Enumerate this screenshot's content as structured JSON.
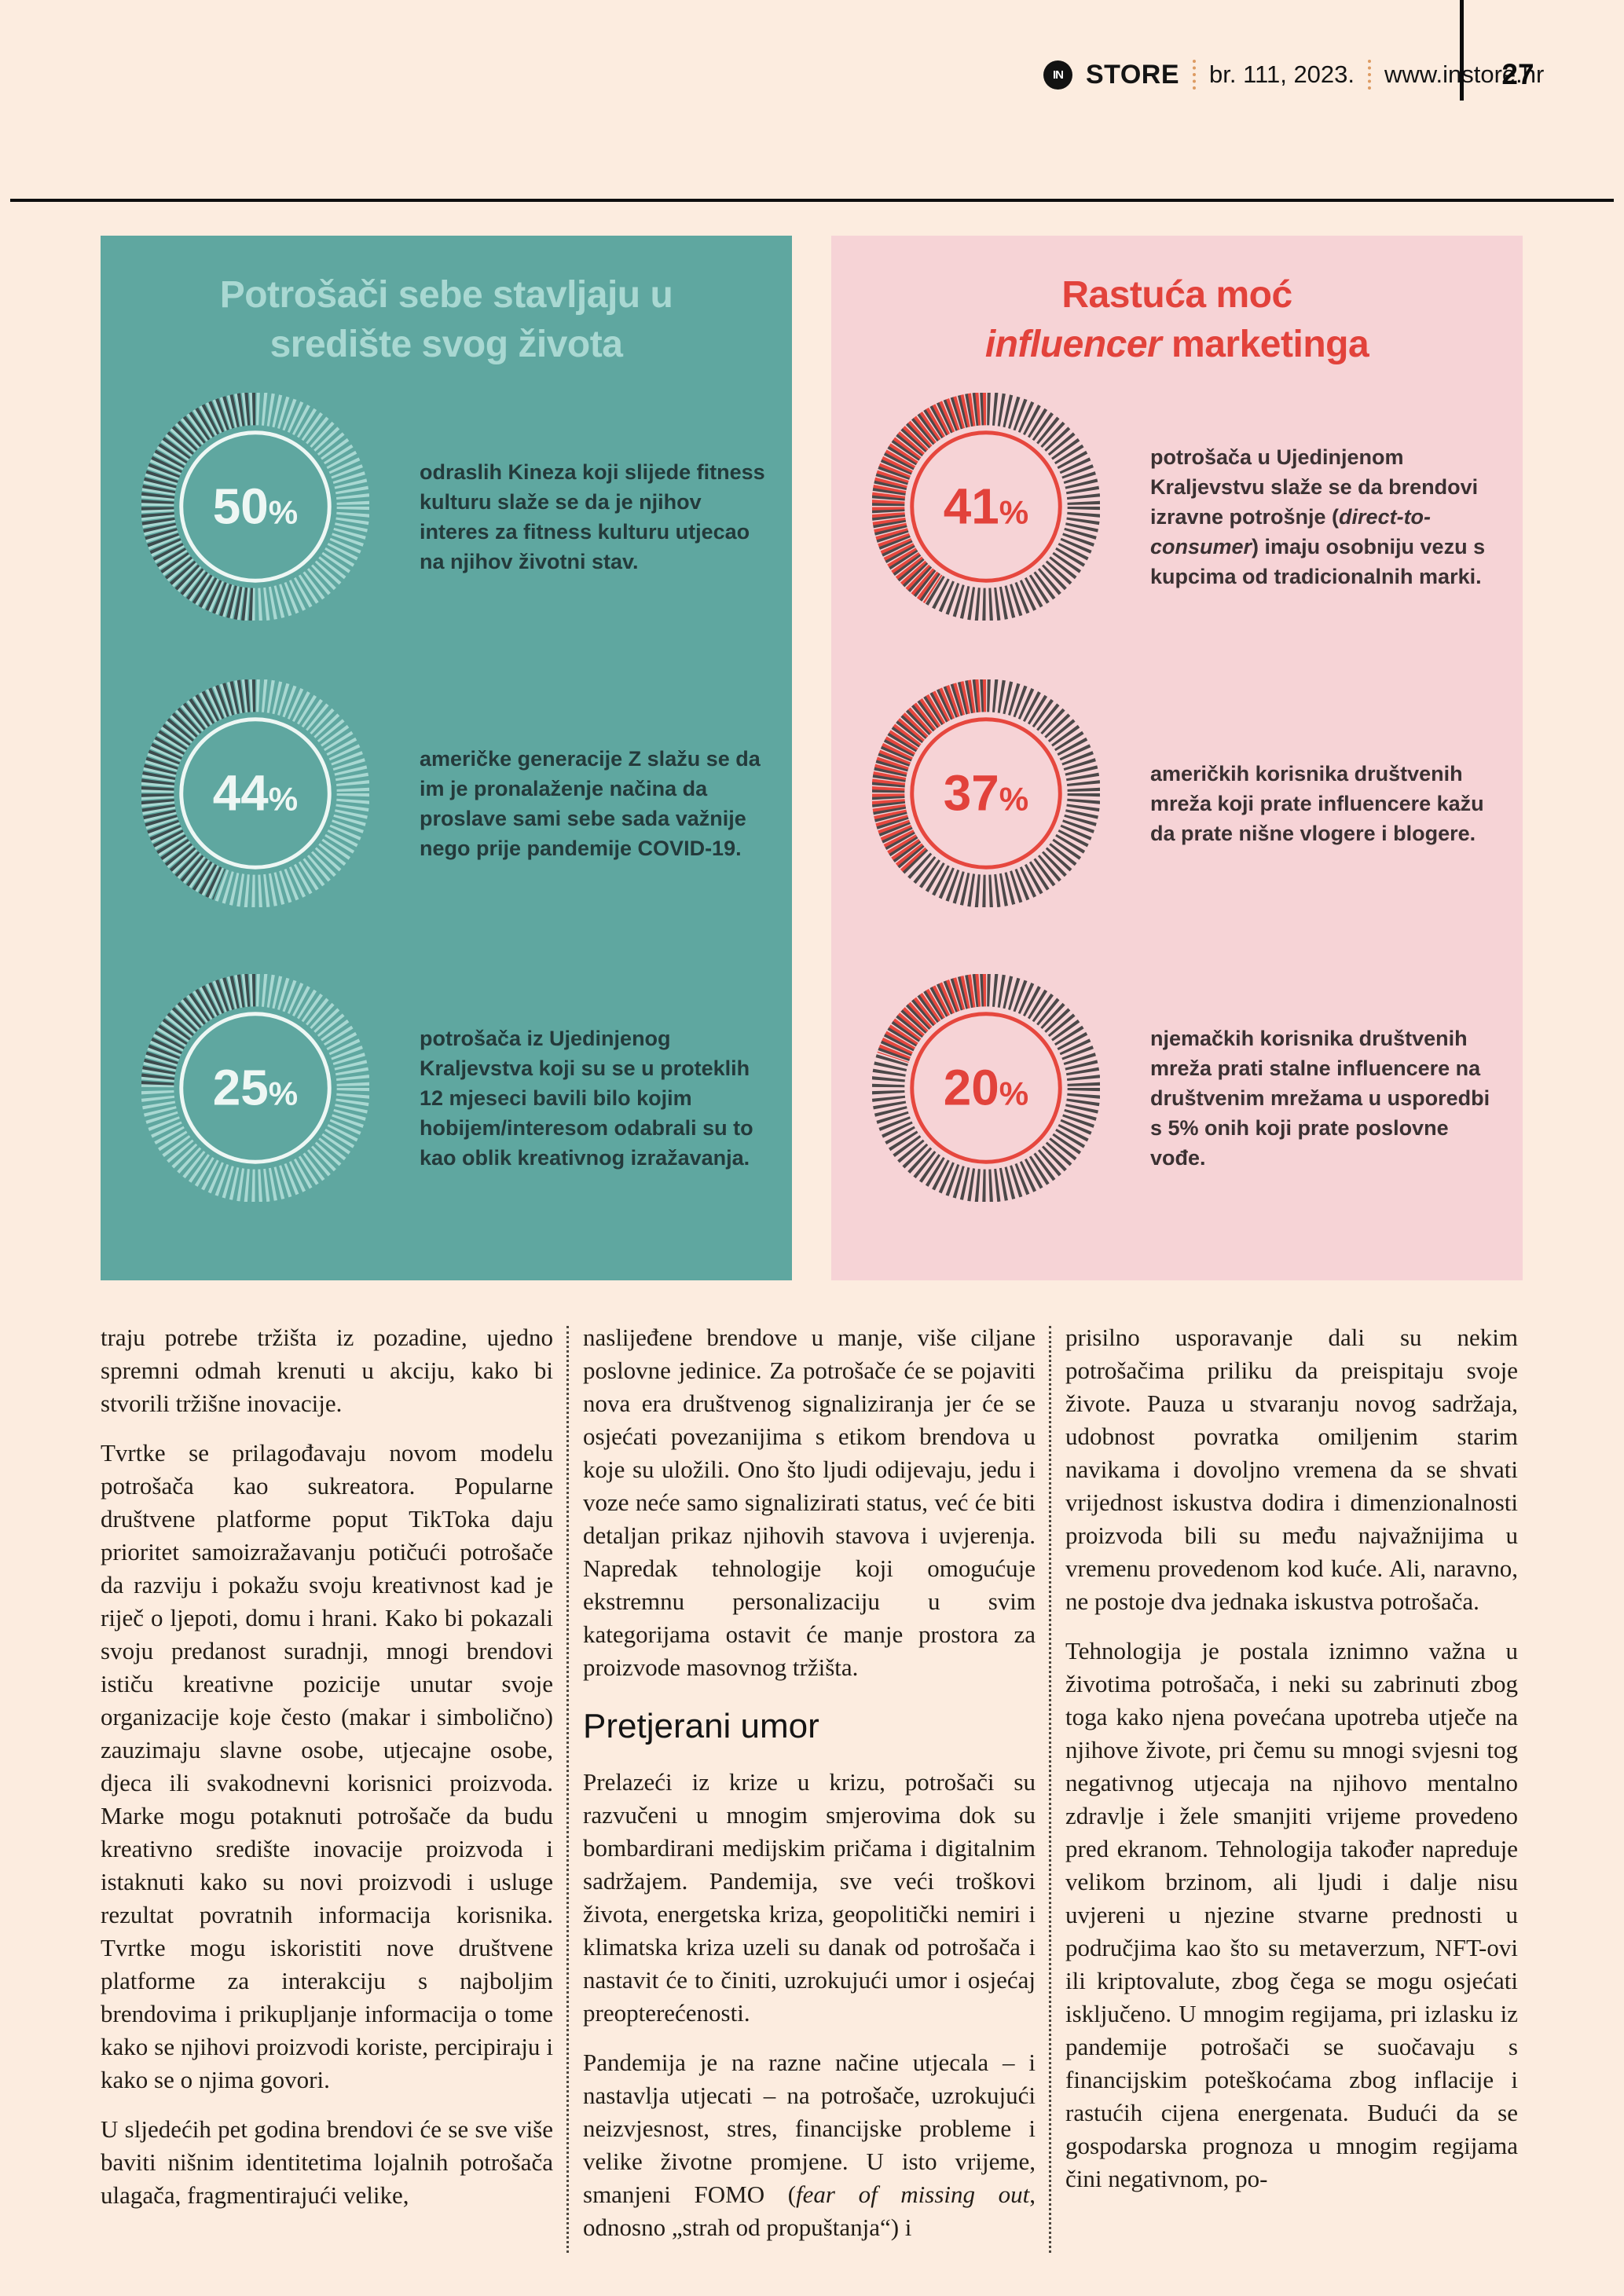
{
  "header": {
    "logo_in": "IN",
    "logo_store": "STORE",
    "issue": "br. 111, 2023.",
    "website": "www.instore.hr",
    "page_number": "27"
  },
  "infographic": {
    "left_panel": {
      "title_line1": "Potrošači sebe stavljaju u",
      "title_line2": "središte svog života",
      "bg_color": "#5fa7a0",
      "title_color": "#a9d8d2",
      "value_color": "#3c4b4d",
      "track_color": "#a9d8d2",
      "ring_color": "#eef7f4",
      "label_color": "#eef7f4",
      "stats": [
        {
          "value": 50,
          "label": "50%",
          "text_segments": [
            {
              "t": "odraslih Kineza koji slijede fitness kulturu slaže se da je njihov interes za fitness kulturu utjecao na njihov životni stav.",
              "i": false
            }
          ]
        },
        {
          "value": 44,
          "label": "44%",
          "text_segments": [
            {
              "t": "američke generacije Z slažu se da im je pronalaženje načina da proslave sami sebe sada važnije nego prije pandemije COVID-19.",
              "i": false
            }
          ]
        },
        {
          "value": 25,
          "label": "25%",
          "text_segments": [
            {
              "t": "potrošača iz Ujedinjenog Kraljevstva koji su se u proteklih 12 mjeseci bavili bilo kojim hobijem/interesom odabrali su to kao oblik kreativnog izražavanja.",
              "i": false
            }
          ]
        }
      ]
    },
    "right_panel": {
      "title_line1": "Rastuća moć",
      "title_line2_italic": "influencer",
      "title_line2_rest": " marketinga",
      "bg_color": "#f6d3d6",
      "title_color": "#e2423b",
      "value_color": "#e6473e",
      "track_color": "#4c4849",
      "ring_color": "#e6473e",
      "label_color": "#e2423b",
      "stats": [
        {
          "value": 41,
          "label": "41%",
          "text_segments": [
            {
              "t": "potrošača u Ujedinjenom Kraljevstvu slaže se da brendovi izravne potrošnje (",
              "i": false
            },
            {
              "t": "direct-to-consumer",
              "i": true
            },
            {
              "t": ") imaju osobniju vezu s kupcima od tradicionalnih marki.",
              "i": false
            }
          ]
        },
        {
          "value": 37,
          "label": "37%",
          "text_segments": [
            {
              "t": "američkih korisnika društvenih mreža koji prate influencere kažu da prate nišne vlogere i blogere.",
              "i": false
            }
          ]
        },
        {
          "value": 20,
          "label": "20%",
          "text_segments": [
            {
              "t": "njemačkih korisnika društvenih mreža prati stalne influencere na društvenim mrežama u usporedbi s 5% onih koji prate poslovne vođe.",
              "i": false
            }
          ]
        }
      ]
    }
  },
  "article": {
    "heading": "Pretjerani umor",
    "columns": [
      {
        "blocks": [
          {
            "type": "p",
            "segments": [
              {
                "t": "traju potrebe tržišta iz pozadine, ujedno spremni odmah krenuti u akciju, kako bi stvorili tržišne inovacije.",
                "i": false
              }
            ]
          },
          {
            "type": "p",
            "segments": [
              {
                "t": "Tvrtke se prilagođavaju novom modelu potrošača kao sukreatora. Popularne društvene platforme poput TikToka daju prioritet samoizražavanju potičući potrošače da razviju i pokažu svoju kreativnost kad je riječ o ljepoti, domu i hrani. Kako bi pokazali svoju predanost suradnji, mnogi brendovi ističu kreativne pozicije unutar svoje organizacije koje često (makar i simbolično) zauzimaju slavne osobe, utjecajne osobe, djeca ili svakodnevni korisnici proizvoda. Marke mogu potaknuti potrošače da budu kreativno središte inovacije proizvoda i istaknuti kako su novi proizvodi i usluge rezultat povratnih informacija korisnika. Tvrtke mogu iskoristiti nove društvene platforme za interakciju s najboljim brendovima i prikupljanje informacija o tome kako se njihovi proizvodi koriste, percipiraju i kako se o njima govori.",
                "i": false
              }
            ]
          },
          {
            "type": "p",
            "segments": [
              {
                "t": "U sljedećih pet godina brendovi će se sve više baviti nišnim identitetima lojalnih potrošača ulagača, fragmentirajući velike,",
                "i": false
              }
            ]
          }
        ]
      },
      {
        "blocks": [
          {
            "type": "p",
            "segments": [
              {
                "t": "naslijeđene brendove u manje, više ciljane poslovne jedinice. Za potrošače će se pojaviti nova era društvenog signaliziranja jer će se osjećati povezanijima s etikom brendova u koje su uložili. Ono što ljudi odijevaju, jedu i voze neće samo signalizirati status, već će biti detaljan prikaz njihovih stavova i uvjerenja. Napredak tehnologije koji omogućuje ekstremnu personalizaciju u svim kategorijama ostavit će manje prostora za proizvode masovnog tržišta.",
                "i": false
              }
            ]
          },
          {
            "type": "h",
            "text": "Pretjerani umor"
          },
          {
            "type": "p",
            "segments": [
              {
                "t": "Prelazeći iz krize u krizu, potrošači su razvučeni u mnogim smjerovima dok su bombardirani medijskim pričama i digitalnim sadržajem. Pandemija, sve veći troškovi života, energetska kriza, geopolitički nemiri i klimatska kriza uzeli su danak od potrošača i nastavit će to činiti, uzrokujući umor i osjećaj preopterećenosti.",
                "i": false
              }
            ]
          },
          {
            "type": "p",
            "segments": [
              {
                "t": "Pandemija je na razne načine utjecala – i nastavlja utjecati – na potrošače, uzrokujući neizvjesnost, stres, financijske probleme i velike životne promjene. U isto vrijeme, smanjeni FOMO (",
                "i": false
              },
              {
                "t": "fear of missing out",
                "i": true
              },
              {
                "t": ", odnosno „strah od propuštanja“) i",
                "i": false
              }
            ]
          }
        ]
      },
      {
        "blocks": [
          {
            "type": "p",
            "segments": [
              {
                "t": "prisilno usporavanje dali su nekim potrošačima priliku da preispitaju svoje živote. Pauza u stvaranju novog sadržaja, udobnost povratka omiljenim starim navikama i dovoljno vremena da se shvati vrijednost iskustva dodira i dimenzionalnosti proizvoda bili su među najvažnijima u vremenu provedenom kod kuće. Ali, naravno, ne postoje dva jednaka iskustva potrošača.",
                "i": false
              }
            ]
          },
          {
            "type": "p",
            "segments": [
              {
                "t": "Tehnologija je postala iznimno važna u životima potrošača, i neki su zabrinuti zbog toga kako njena povećana upotreba utječe na njihove živote, pri čemu su mnogi svjesni tog negativnog utjecaja na njihovo mentalno zdravlje i žele smanjiti vrijeme provedeno pred ekranom. Tehnologija također napreduje velikom brzinom, ali ljudi i dalje nisu uvjereni u njezine stvarne prednosti u područjima kao što su metaverzum, NFT-ovi ili kriptovalute, zbog čega se mogu osjećati isključeno. U mnogim regijama, pri izlasku iz pandemije potrošači se suočavaju s financijskim poteškoćama zbog inflacije i rastućih cijena energenata. Budući da se gospodarska prognoza u mnogim regijama čini negativnom, po-",
                "i": false
              }
            ]
          }
        ]
      }
    ]
  },
  "chart_data": [
    {
      "type": "pie",
      "title": "Potrošači sebe stavljaju u središte svog života",
      "units": "%",
      "values": [
        50,
        44,
        25
      ],
      "labels": [
        "odraslih Kineza koji slijede fitness kulturu slaže se da je njihov interes za fitness kulturu utjecao na njihov životni stav.",
        "američke generacije Z slažu se da im je pronalaženje načina da proslave sami sebe sada važnije nego prije pandemije COVID-19.",
        "potrošača iz Ujedinjenog Kraljevstva koji su se u proteklih 12 mjeseci bavili bilo kojim hobijem/interesom odabrali su to kao oblik kreativnog izražavanja."
      ],
      "style": {
        "value_color": "#3c4b4d",
        "track_color": "#a9d8d2",
        "background": "#5fa7a0",
        "donut": true,
        "fill_direction": "counterclockwise-from-top"
      }
    },
    {
      "type": "pie",
      "title": "Rastuća moć influencer marketinga",
      "units": "%",
      "values": [
        41,
        37,
        20
      ],
      "labels": [
        "potrošača u Ujedinjenom Kraljevstvu slaže se da brendovi izravne potrošnje (direct-to-consumer) imaju osobniju vezu s kupcima od tradicionalnih marki.",
        "američkih korisnika društvenih mreža koji prate influencere kažu da prate nišne vlogere i blogere.",
        "njemačkih korisnika društvenih mreža prati stalne influencere na društvenim mrežama u usporedbi s 5% onih koji prate poslovne vođe."
      ],
      "style": {
        "value_color": "#e6473e",
        "track_color": "#4c4849",
        "background": "#f6d3d6",
        "donut": true,
        "fill_direction": "counterclockwise-from-top"
      }
    }
  ]
}
